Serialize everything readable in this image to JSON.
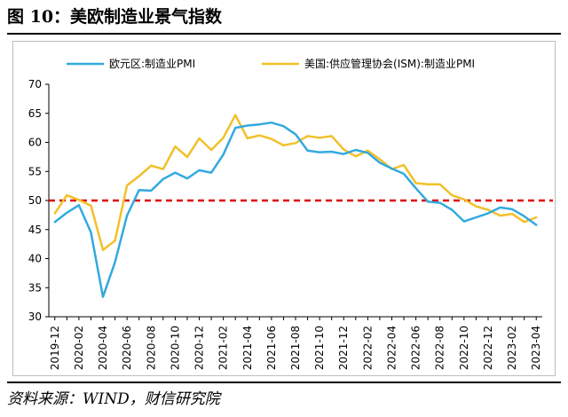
{
  "figure": {
    "title": "图 10：美欧制造业景气指数",
    "source": "资料来源：WIND，财信研究院"
  },
  "colors": {
    "eu": "#33a9df",
    "us": "#f2c029",
    "reference": "#e00000",
    "axis": "#000000"
  },
  "chart_data": {
    "type": "line",
    "title": "",
    "xlabel": "",
    "ylabel": "",
    "ylim": [
      30,
      70
    ],
    "yticks": [
      30,
      35,
      40,
      45,
      50,
      55,
      60,
      65,
      70
    ],
    "x": [
      "2019-12",
      "2020-01",
      "2020-02",
      "2020-03",
      "2020-04",
      "2020-05",
      "2020-06",
      "2020-07",
      "2020-08",
      "2020-09",
      "2020-10",
      "2020-11",
      "2020-12",
      "2021-01",
      "2021-02",
      "2021-03",
      "2021-04",
      "2021-05",
      "2021-06",
      "2021-07",
      "2021-08",
      "2021-09",
      "2021-10",
      "2021-11",
      "2021-12",
      "2022-01",
      "2022-02",
      "2022-03",
      "2022-04",
      "2022-05",
      "2022-06",
      "2022-07",
      "2022-08",
      "2022-09",
      "2022-10",
      "2022-11",
      "2022-12",
      "2023-01",
      "2023-02",
      "2023-03",
      "2023-04"
    ],
    "xtick_labels": [
      "2019-12",
      "2020-02",
      "2020-04",
      "2020-06",
      "2020-08",
      "2020-10",
      "2020-12",
      "2021-02",
      "2021-04",
      "2021-06",
      "2021-08",
      "2021-10",
      "2021-12",
      "2022-02",
      "2022-04",
      "2022-06",
      "2022-08",
      "2022-10",
      "2022-12",
      "2023-02",
      "2023-04"
    ],
    "legend_position": "top",
    "grid": false,
    "series": [
      {
        "name": "欧元区:制造业PMI",
        "color_key": "eu",
        "values": [
          46.3,
          47.9,
          49.2,
          44.5,
          33.4,
          39.4,
          47.4,
          51.8,
          51.7,
          53.7,
          54.8,
          53.8,
          55.2,
          54.8,
          57.9,
          62.5,
          62.9,
          63.1,
          63.4,
          62.8,
          61.4,
          58.6,
          58.3,
          58.4,
          58.0,
          58.7,
          58.2,
          56.5,
          55.5,
          54.6,
          52.1,
          49.8,
          49.6,
          48.4,
          46.4,
          47.1,
          47.8,
          48.8,
          48.5,
          47.3,
          45.8
        ]
      },
      {
        "name": "美国:供应管理协会(ISM):制造业PMI",
        "color_key": "us",
        "values": [
          47.8,
          50.9,
          50.1,
          49.1,
          41.5,
          43.1,
          52.6,
          54.2,
          56.0,
          55.4,
          59.3,
          57.5,
          60.7,
          58.7,
          60.8,
          64.7,
          60.7,
          61.2,
          60.6,
          59.5,
          59.9,
          61.1,
          60.8,
          61.1,
          58.8,
          57.6,
          58.6,
          57.1,
          55.4,
          56.1,
          53.0,
          52.8,
          52.8,
          50.9,
          50.2,
          49.0,
          48.4,
          47.4,
          47.7,
          46.3,
          47.1
        ]
      }
    ],
    "reference_line": {
      "y": 50,
      "style": "dashed"
    }
  }
}
